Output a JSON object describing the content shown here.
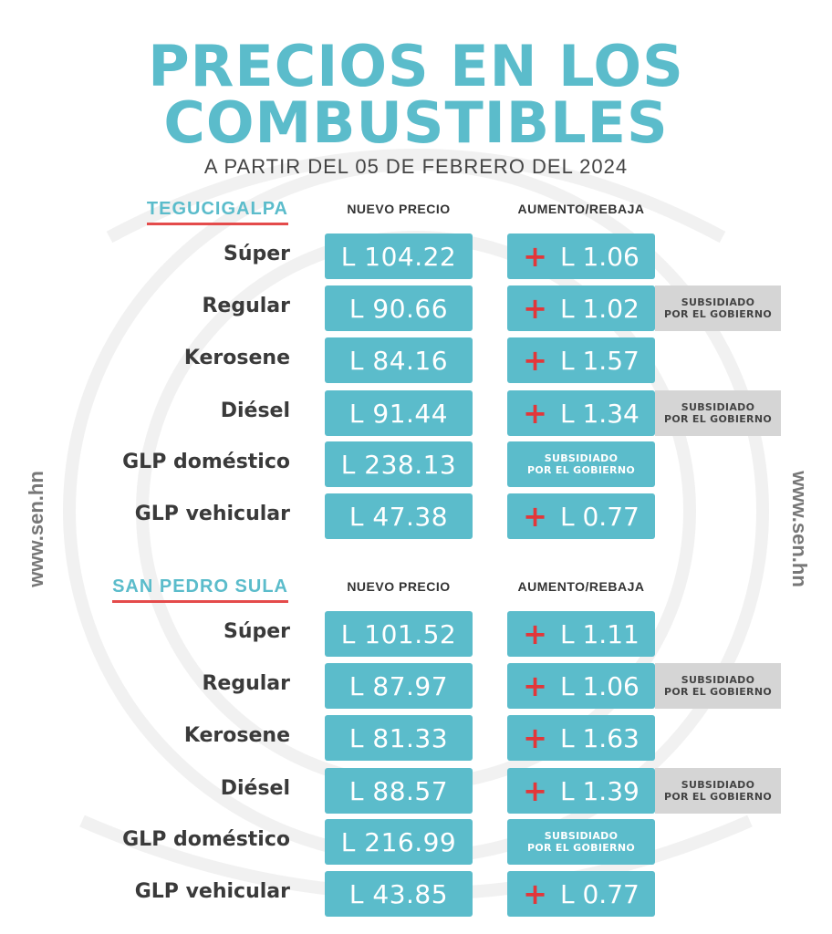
{
  "title_line1": "PRECIOS EN LOS",
  "title_line2": "COMBUSTIBLES",
  "subtitle": "A PARTIR DEL 05 DE FEBRERO DEL 2024",
  "side_url": "www.sen.hn",
  "columns": {
    "price": "NUEVO PRECIO",
    "change": "AUMENTO/REBAJA"
  },
  "subsidy_line1": "SUBSIDIADO",
  "subsidy_line2": "POR EL GOBIERNO",
  "colors": {
    "accent": "#5bbccb",
    "plus": "#e2373a",
    "underline": "#e44b4b",
    "note_bg": "#d5d5d5"
  },
  "sections": [
    {
      "city": "TEGUCIGALPA",
      "rows": [
        {
          "fuel": "Súper",
          "price": "L 104.22",
          "sign": "+",
          "change": "L 1.06",
          "note": false
        },
        {
          "fuel": "Regular",
          "price": "L 90.66",
          "sign": "+",
          "change": "L 1.02",
          "note": true
        },
        {
          "fuel": "Kerosene",
          "price": "L 84.16",
          "sign": "+",
          "change": "L 1.57",
          "note": false
        },
        {
          "fuel": "Diésel",
          "price": "L 91.44",
          "sign": "+",
          "change": "L 1.34",
          "note": true
        },
        {
          "fuel": "GLP doméstico",
          "price": "L 238.13",
          "subsidized": true
        },
        {
          "fuel": "GLP vehicular",
          "price": "L 47.38",
          "sign": "+",
          "change": "L 0.77",
          "note": false
        }
      ]
    },
    {
      "city": "SAN PEDRO SULA",
      "rows": [
        {
          "fuel": "Súper",
          "price": "L 101.52",
          "sign": "+",
          "change": "L 1.11",
          "note": false
        },
        {
          "fuel": "Regular",
          "price": "L 87.97",
          "sign": "+",
          "change": "L 1.06",
          "note": true
        },
        {
          "fuel": "Kerosene",
          "price": "L 81.33",
          "sign": "+",
          "change": "L 1.63",
          "note": false
        },
        {
          "fuel": "Diésel",
          "price": "L 88.57",
          "sign": "+",
          "change": "L 1.39",
          "note": true
        },
        {
          "fuel": "GLP doméstico",
          "price": "L 216.99",
          "subsidized": true
        },
        {
          "fuel": "GLP vehicular",
          "price": "L 43.85",
          "sign": "+",
          "change": "L 0.77",
          "note": false
        }
      ]
    }
  ]
}
